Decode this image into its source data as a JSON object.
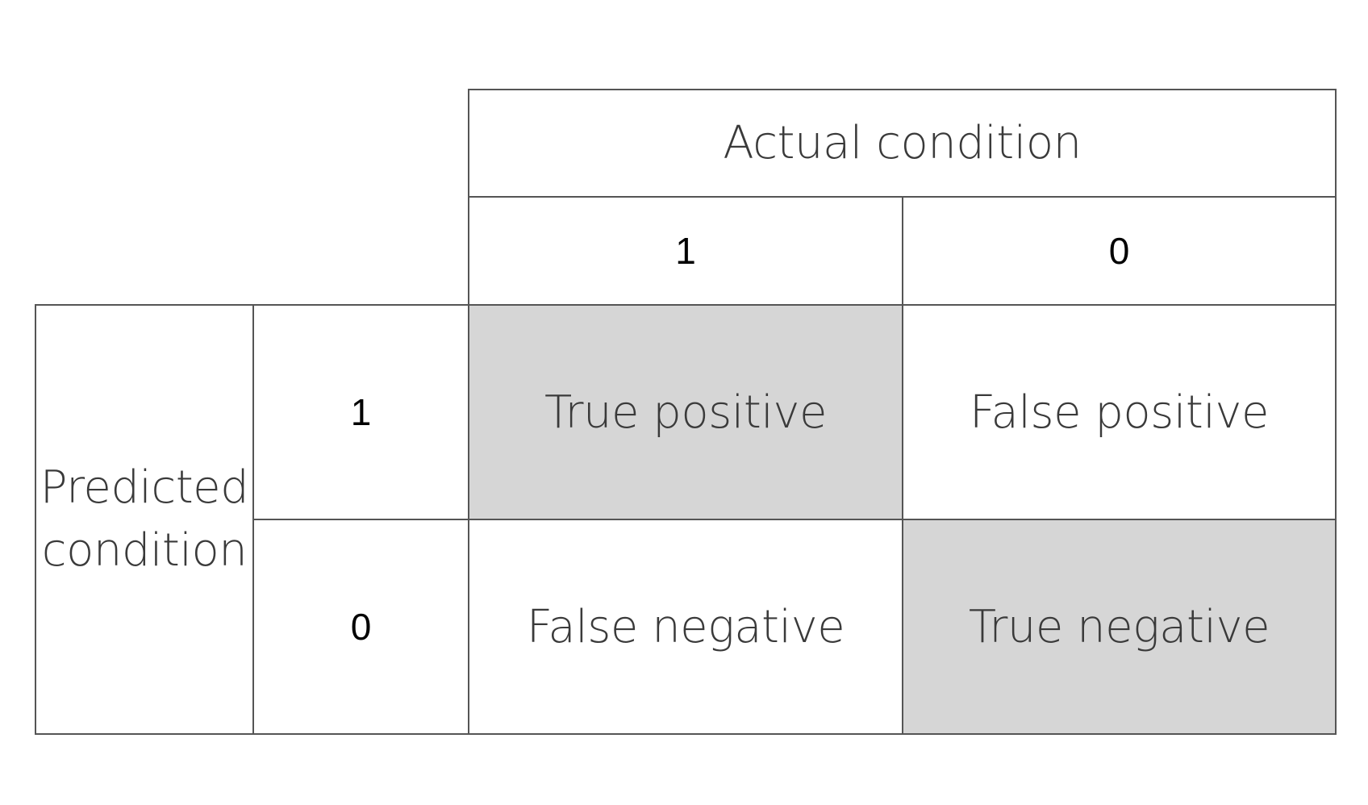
{
  "matrix": {
    "actual_header": "Actual condition",
    "predicted_header": {
      "line1": "Predicted",
      "line2": "condition"
    },
    "actual_values": [
      "1",
      "0"
    ],
    "predicted_values": [
      "1",
      "0"
    ],
    "cells": {
      "tp": "True positive",
      "fp": "False positive",
      "fn": "False negative",
      "tn": "True negative"
    },
    "colors": {
      "shaded": "#d6d6d6",
      "border": "#555555"
    }
  }
}
